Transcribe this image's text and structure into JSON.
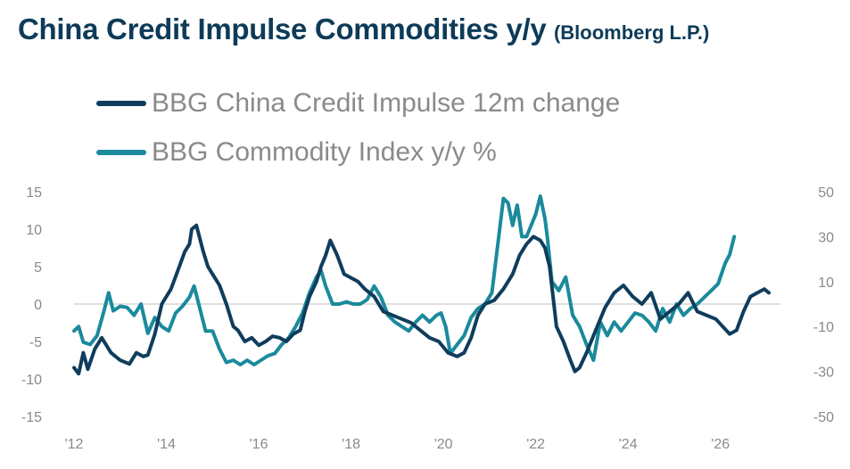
{
  "chart_data": {
    "type": "line",
    "title": "China Credit Impulse Commodities y/y",
    "subtitle": "(Bloomberg L.P.)",
    "x_tick_labels": [
      "'12",
      "'14",
      "'16",
      "'18",
      "'20",
      "'22",
      "'24",
      "'26"
    ],
    "x_tick_years": [
      2012,
      2014,
      2016,
      2018,
      2020,
      2022,
      2024,
      2026
    ],
    "xlim": [
      2012,
      2027.3
    ],
    "left_axis": {
      "ylim": [
        -15,
        15
      ],
      "ticks": [
        15,
        10,
        5,
        0,
        -5,
        -10,
        -15
      ]
    },
    "right_axis": {
      "ylim": [
        -50,
        50
      ],
      "ticks": [
        50,
        30,
        10,
        -10,
        -30,
        -50
      ]
    },
    "zero_line": true,
    "series": [
      {
        "name": "BBG China Credit Impulse 12m change",
        "axis": "left",
        "color": "#0f3d5c",
        "x": [
          2012.0,
          2012.1,
          2012.2,
          2012.3,
          2012.45,
          2012.6,
          2012.8,
          2013.0,
          2013.2,
          2013.35,
          2013.5,
          2013.6,
          2013.75,
          2013.9,
          2014.1,
          2014.25,
          2014.4,
          2014.5,
          2014.55,
          2014.65,
          2014.8,
          2014.9,
          2015.0,
          2015.15,
          2015.3,
          2015.45,
          2015.55,
          2015.7,
          2015.85,
          2016.0,
          2016.15,
          2016.3,
          2016.45,
          2016.6,
          2016.75,
          2016.9,
          2017.0,
          2017.1,
          2017.25,
          2017.35,
          2017.45,
          2017.55,
          2017.7,
          2017.85,
          2018.0,
          2018.15,
          2018.3,
          2018.5,
          2018.7,
          2018.9,
          2019.1,
          2019.3,
          2019.5,
          2019.7,
          2019.9,
          2020.1,
          2020.3,
          2020.45,
          2020.6,
          2020.75,
          2020.9,
          2021.1,
          2021.3,
          2021.5,
          2021.65,
          2021.8,
          2021.95,
          2022.1,
          2022.2,
          2022.3,
          2022.45,
          2022.6,
          2022.75,
          2022.85,
          2022.95,
          2023.1,
          2023.3,
          2023.5,
          2023.7,
          2023.9,
          2024.1,
          2024.3,
          2024.5,
          2024.7,
          2024.9,
          2025.1,
          2025.3,
          2025.5,
          2025.7,
          2025.9,
          2026.05,
          2026.2,
          2026.35,
          2026.5,
          2026.65,
          2026.8,
          2026.95,
          2027.05
        ],
        "y": [
          -8.5,
          -9.3,
          -6.5,
          -8.7,
          -6.0,
          -4.5,
          -6.5,
          -7.5,
          -8.0,
          -6.5,
          -7.0,
          -6.8,
          -4.0,
          0.0,
          2.0,
          4.5,
          7.0,
          8.0,
          10.0,
          10.5,
          7.0,
          5.0,
          4.0,
          2.5,
          0.0,
          -3.0,
          -3.5,
          -5.0,
          -4.5,
          -5.5,
          -5.0,
          -4.3,
          -4.5,
          -5.0,
          -4.0,
          -3.5,
          -1.0,
          1.0,
          3.0,
          5.0,
          6.5,
          8.5,
          6.5,
          4.0,
          3.5,
          3.0,
          2.0,
          1.0,
          -1.0,
          -1.5,
          -2.0,
          -2.5,
          -3.5,
          -4.5,
          -5.0,
          -6.5,
          -7.0,
          -6.5,
          -4.5,
          -1.5,
          0.0,
          0.5,
          2.0,
          4.0,
          6.5,
          8.0,
          9.0,
          8.5,
          7.5,
          5.0,
          -3.0,
          -5.0,
          -7.5,
          -9.0,
          -8.5,
          -6.5,
          -3.5,
          -0.5,
          1.5,
          2.5,
          1.0,
          0.0,
          1.5,
          -2.0,
          -1.0,
          0.0,
          1.5,
          -1.0,
          -1.5,
          -2.0,
          -3.0,
          -4.0,
          -3.5,
          -1.0,
          1.0,
          1.5,
          2.0,
          1.5
        ]
      },
      {
        "name": "BBG Commodity Index y/y %",
        "axis": "right",
        "color": "#1a8a9c",
        "x": [
          2012.0,
          2012.1,
          2012.2,
          2012.35,
          2012.5,
          2012.65,
          2012.75,
          2012.85,
          2013.0,
          2013.15,
          2013.3,
          2013.45,
          2013.6,
          2013.75,
          2013.9,
          2014.05,
          2014.2,
          2014.35,
          2014.5,
          2014.6,
          2014.7,
          2014.85,
          2015.0,
          2015.15,
          2015.3,
          2015.45,
          2015.6,
          2015.75,
          2015.9,
          2016.05,
          2016.2,
          2016.35,
          2016.5,
          2016.65,
          2016.8,
          2016.95,
          2017.1,
          2017.25,
          2017.35,
          2017.45,
          2017.6,
          2017.75,
          2017.9,
          2018.05,
          2018.2,
          2018.35,
          2018.5,
          2018.65,
          2018.8,
          2018.95,
          2019.1,
          2019.25,
          2019.4,
          2019.55,
          2019.7,
          2019.85,
          2019.95,
          2020.05,
          2020.15,
          2020.3,
          2020.45,
          2020.6,
          2020.75,
          2020.9,
          2021.05,
          2021.2,
          2021.3,
          2021.4,
          2021.5,
          2021.6,
          2021.7,
          2021.8,
          2021.9,
          2022.0,
          2022.1,
          2022.2,
          2022.25,
          2022.35,
          2022.5,
          2022.65,
          2022.8,
          2022.95,
          2023.1,
          2023.25,
          2023.4,
          2023.55,
          2023.7,
          2023.85,
          2024.0,
          2024.15,
          2024.3,
          2024.45,
          2024.6,
          2024.75,
          2024.9,
          2025.05,
          2025.2,
          2025.35,
          2025.5,
          2025.65,
          2025.8,
          2025.95,
          2026.1,
          2026.2,
          2026.3
        ],
        "y": [
          -12.0,
          -10.0,
          -17.0,
          -18.0,
          -14.0,
          -3.0,
          5.0,
          -3.0,
          -1.0,
          -1.5,
          -5.0,
          0.0,
          -13.0,
          -6.0,
          -10.0,
          -12.0,
          -4.0,
          -1.0,
          3.0,
          8.0,
          0.0,
          -12.0,
          -12.0,
          -20.0,
          -26.0,
          -25.0,
          -27.0,
          -25.0,
          -27.0,
          -25.0,
          -23.0,
          -22.0,
          -18.0,
          -15.0,
          -10.0,
          -4.0,
          5.0,
          12.0,
          15.0,
          8.0,
          0.0,
          0.0,
          1.0,
          0.0,
          0.0,
          2.0,
          8.0,
          3.0,
          -5.0,
          -8.0,
          -10.0,
          -12.0,
          -8.0,
          -5.0,
          -8.0,
          -5.0,
          -4.0,
          -10.0,
          -22.0,
          -18.0,
          -14.0,
          -6.0,
          -2.0,
          0.0,
          5.0,
          30.0,
          47.0,
          45.0,
          35.0,
          44.0,
          30.0,
          30.0,
          35.0,
          40.0,
          48.0,
          38.0,
          30.0,
          10.0,
          6.0,
          12.0,
          -5.0,
          -10.0,
          -18.0,
          -25.0,
          -8.0,
          -14.0,
          -8.0,
          -12.0,
          -8.0,
          -4.0,
          -5.0,
          -8.0,
          -12.0,
          -2.0,
          -8.0,
          0.0,
          -5.0,
          -2.0,
          0.0,
          3.0,
          6.0,
          9.0,
          18.0,
          22.0,
          30.0
        ]
      }
    ]
  }
}
